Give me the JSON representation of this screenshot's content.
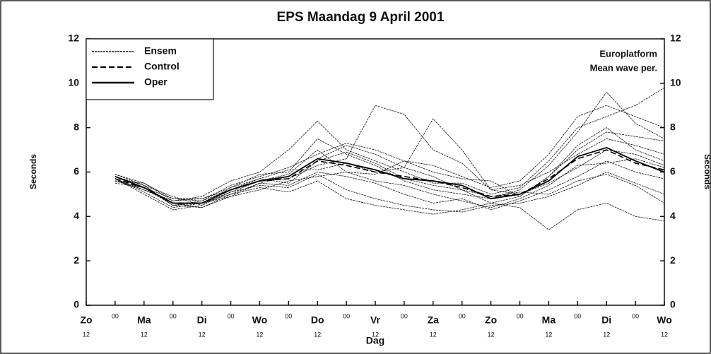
{
  "chart_data": {
    "type": "line",
    "title": "EPS  Maandag   9 April    2001",
    "ylabel": "Seconds",
    "y2label": "Seconds",
    "xlabel": "Dag",
    "annotations": [
      "Europlatform",
      "Mean wave per."
    ],
    "categories": [
      "Zo",
      "00",
      "Ma",
      "00",
      "Di",
      "00",
      "Wo",
      "00",
      "Do",
      "00",
      "Vr",
      "00",
      "Za",
      "00",
      "Zo",
      "00",
      "Ma",
      "00",
      "Di",
      "00",
      "Wo"
    ],
    "category_sublabels": [
      "12",
      null,
      "12",
      null,
      "12",
      null,
      "12",
      null,
      "12",
      null,
      "12",
      null,
      "12",
      null,
      "12",
      null,
      "12",
      null,
      "12",
      null,
      "12"
    ],
    "ylim": [
      0,
      12
    ],
    "yticks": [
      0,
      2,
      4,
      6,
      8,
      10,
      12
    ],
    "y2lim": [
      0,
      12
    ],
    "y2ticks": [
      0,
      2,
      4,
      6,
      8,
      10,
      12
    ],
    "legend": "upper left",
    "series": [
      {
        "name": "Ensem",
        "color": "#111111",
        "style": "dotted",
        "members": [
          [
            null,
            5.8,
            5.4,
            4.5,
            4.4,
            5.0,
            5.5,
            5.8,
            6.6,
            7.2,
            6.8,
            6.2,
            5.8,
            5.2,
            4.6,
            4.9,
            5.8,
            7.2,
            8.0,
            7.0,
            6.5
          ],
          [
            null,
            5.6,
            5.2,
            4.7,
            4.8,
            5.3,
            5.9,
            6.0,
            7.5,
            6.8,
            6.3,
            5.6,
            5.2,
            5.0,
            4.8,
            5.2,
            6.3,
            7.8,
            9.6,
            8.2,
            7.5
          ],
          [
            null,
            5.7,
            5.0,
            4.3,
            4.5,
            5.1,
            5.4,
            5.3,
            5.9,
            5.2,
            4.8,
            4.5,
            4.3,
            4.2,
            4.5,
            4.6,
            4.9,
            5.4,
            6.0,
            5.5,
            5.0
          ],
          [
            null,
            5.9,
            5.5,
            4.8,
            4.7,
            5.4,
            5.8,
            6.2,
            6.8,
            7.3,
            7.0,
            6.5,
            6.3,
            5.8,
            5.3,
            5.6,
            6.8,
            8.5,
            9.0,
            8.5,
            8.0
          ],
          [
            null,
            5.5,
            5.3,
            4.6,
            4.6,
            5.0,
            5.3,
            5.1,
            5.6,
            4.8,
            4.5,
            4.3,
            4.1,
            4.3,
            4.6,
            4.4,
            3.4,
            4.3,
            4.6,
            4.0,
            3.8
          ],
          [
            null,
            5.6,
            5.3,
            4.5,
            4.7,
            5.2,
            5.6,
            5.7,
            6.3,
            6.6,
            9.0,
            8.6,
            7.0,
            6.4,
            5.2,
            5.0,
            5.5,
            6.2,
            7.0,
            6.8,
            6.3
          ],
          [
            null,
            5.8,
            5.4,
            4.9,
            4.5,
            5.3,
            5.7,
            6.1,
            6.1,
            6.4,
            6.0,
            6.2,
            8.4,
            7.0,
            5.2,
            5.4,
            6.0,
            6.8,
            7.5,
            7.2,
            6.8
          ],
          [
            null,
            5.7,
            5.1,
            4.4,
            4.6,
            4.9,
            5.5,
            5.4,
            6.0,
            5.8,
            5.5,
            5.0,
            4.6,
            4.8,
            4.3,
            4.7,
            5.2,
            5.8,
            6.5,
            6.0,
            5.7
          ],
          [
            null,
            5.6,
            5.5,
            4.7,
            4.9,
            5.6,
            6.0,
            7.0,
            8.3,
            7.0,
            6.5,
            6.0,
            5.5,
            5.5,
            5.0,
            5.3,
            6.5,
            8.0,
            8.5,
            9.0,
            9.8
          ],
          [
            null,
            5.7,
            5.2,
            4.6,
            4.4,
            4.9,
            5.2,
            5.6,
            5.8,
            6.0,
            5.6,
            5.4,
            5.0,
            4.7,
            4.4,
            4.8,
            5.4,
            6.3,
            6.4,
            6.6,
            6.2
          ],
          [
            null,
            5.9,
            5.4,
            4.5,
            4.6,
            5.1,
            5.6,
            5.9,
            7.0,
            6.0,
            5.9,
            6.5,
            6.0,
            5.7,
            5.6,
            4.9,
            5.8,
            7.0,
            7.8,
            7.6,
            7.4
          ],
          [
            null,
            5.6,
            5.3,
            4.8,
            4.8,
            5.2,
            5.7,
            5.5,
            6.5,
            6.9,
            6.4,
            5.7,
            5.4,
            5.2,
            4.9,
            5.1,
            5.0,
            5.6,
            5.9,
            5.4,
            4.6
          ]
        ]
      },
      {
        "name": "Control",
        "color": "#000000",
        "style": "dashed",
        "values": [
          null,
          5.7,
          5.3,
          4.6,
          4.6,
          5.2,
          5.6,
          5.7,
          6.5,
          6.3,
          6.0,
          5.8,
          5.6,
          5.3,
          4.9,
          5.0,
          5.7,
          6.6,
          7.0,
          6.4,
          6.1
        ]
      },
      {
        "name": "Oper",
        "color": "#000000",
        "style": "solid",
        "values": [
          null,
          5.8,
          5.3,
          4.6,
          4.6,
          5.2,
          5.6,
          5.8,
          6.6,
          6.4,
          6.1,
          5.7,
          5.6,
          5.4,
          4.8,
          5.0,
          5.6,
          6.7,
          7.1,
          6.5,
          6.0
        ]
      }
    ]
  }
}
